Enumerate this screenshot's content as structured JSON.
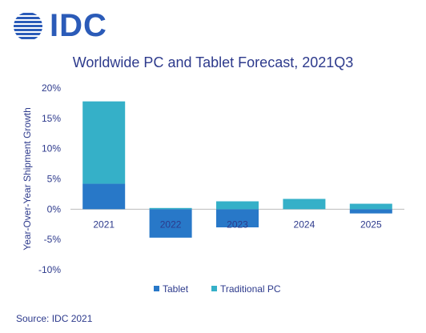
{
  "logo": {
    "text": "IDC"
  },
  "source": "Source: IDC 2021",
  "colors": {
    "tablet": "#2878c8",
    "traditional_pc": "#35b0c8",
    "text": "#2d3a8c",
    "brand": "#2b5bb8"
  },
  "chart_data": {
    "type": "bar",
    "stacked": true,
    "title": "Worldwide PC and Tablet Forecast, 2021Q3",
    "xlabel": "",
    "ylabel": "Year-Over-Year  Shipment Growth",
    "categories": [
      "2021",
      "2022",
      "2023",
      "2024",
      "2025"
    ],
    "ylim": [
      -10,
      20
    ],
    "yticks": [
      "20%",
      "15%",
      "10%",
      "5%",
      "0%",
      "-5%",
      "-10%"
    ],
    "ytick_values": [
      20,
      15,
      10,
      5,
      0,
      -5,
      -10
    ],
    "series": [
      {
        "name": "Tablet",
        "values": [
          4.2,
          -4.7,
          -3.0,
          0.0,
          -0.7
        ]
      },
      {
        "name": "Traditional PC",
        "values": [
          13.6,
          0.2,
          1.3,
          1.7,
          0.9
        ]
      }
    ],
    "legend": "bottom",
    "grid": false
  }
}
